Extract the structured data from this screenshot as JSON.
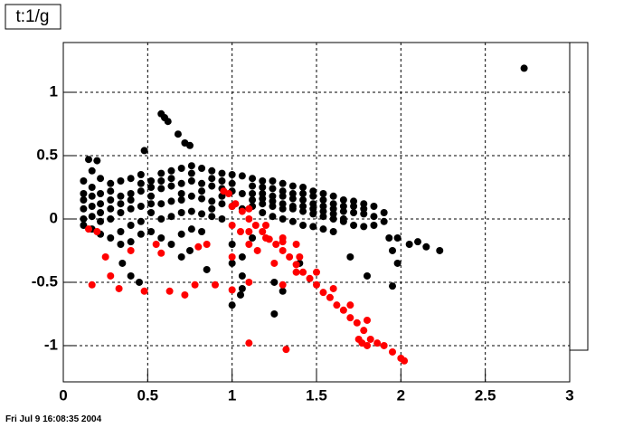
{
  "chart_data": {
    "type": "scatter",
    "title": "t:1/g",
    "footer": "Fri Jul  9 16:08:35 2004",
    "xlim": [
      0,
      3
    ],
    "ylim": [
      -1.286,
      1.393
    ],
    "xticks": [
      0,
      0.5,
      1,
      1.5,
      2,
      2.5,
      3
    ],
    "yticks": [
      -1,
      -0.5,
      0,
      0.5,
      1
    ],
    "grid": true,
    "series": [
      {
        "color": "#000000",
        "x": [
          0.12,
          0.12,
          0.12,
          0.12,
          0.12,
          0.12,
          0.17,
          0.17,
          0.17,
          0.17,
          0.17,
          0.17,
          0.22,
          0.22,
          0.22,
          0.22,
          0.22,
          0.22,
          0.28,
          0.28,
          0.28,
          0.28,
          0.28,
          0.28,
          0.34,
          0.34,
          0.34,
          0.34,
          0.34,
          0.34,
          0.4,
          0.4,
          0.4,
          0.4,
          0.4,
          0.4,
          0.46,
          0.46,
          0.46,
          0.46,
          0.46,
          0.46,
          0.52,
          0.52,
          0.52,
          0.52,
          0.52,
          0.52,
          0.58,
          0.58,
          0.58,
          0.58,
          0.58,
          0.58,
          0.64,
          0.64,
          0.64,
          0.64,
          0.64,
          0.64,
          0.7,
          0.7,
          0.7,
          0.7,
          0.7,
          0.7,
          0.76,
          0.76,
          0.76,
          0.76,
          0.76,
          0.76,
          0.82,
          0.82,
          0.82,
          0.82,
          0.82,
          0.82,
          0.88,
          0.88,
          0.88,
          0.88,
          0.88,
          0.88,
          0.94,
          0.94,
          0.94,
          0.94,
          0.94,
          0.94,
          1.0,
          1.0,
          1.0,
          1.0,
          1.0,
          1.0,
          1.06,
          1.06,
          1.06,
          1.06,
          1.06,
          1.06,
          1.12,
          1.12,
          1.12,
          1.12,
          1.12,
          1.12,
          1.18,
          1.18,
          1.18,
          1.18,
          1.18,
          1.18,
          1.24,
          1.24,
          1.24,
          1.24,
          1.24,
          1.24,
          1.3,
          1.3,
          1.3,
          1.3,
          1.3,
          1.3,
          1.36,
          1.36,
          1.36,
          1.36,
          1.36,
          1.36,
          1.42,
          1.42,
          1.42,
          1.42,
          1.42,
          1.42,
          1.48,
          1.48,
          1.48,
          1.48,
          1.48,
          1.48,
          1.54,
          1.54,
          1.54,
          1.54,
          1.54,
          1.54,
          1.6,
          1.6,
          1.6,
          1.6,
          1.6,
          1.6,
          1.66,
          1.66,
          1.66,
          1.66,
          1.66,
          1.72,
          1.72,
          1.72,
          1.72,
          1.78,
          1.78,
          1.78,
          1.78,
          1.84,
          1.84,
          1.84,
          1.9,
          1.9,
          2.73,
          0.58,
          0.6,
          0.62,
          0.68,
          0.72,
          0.75,
          0.48,
          0.15,
          0.2,
          1.93,
          1.98,
          2.05,
          2.1,
          2.15,
          2.23,
          1.95,
          1.98,
          1.8,
          1.95,
          1.25,
          1.3,
          1.25,
          1.4,
          1.7,
          1.0,
          1.05,
          0.45,
          0.4,
          0.35,
          0.7,
          0.75,
          0.85
        ],
        "values": [
          0.3,
          0.15,
          0.0,
          -0.05,
          0.2,
          0.08,
          0.38,
          0.25,
          0.1,
          -0.08,
          0.18,
          0.02,
          0.32,
          0.2,
          0.05,
          -0.12,
          0.12,
          -0.02,
          0.28,
          0.15,
          0.0,
          -0.15,
          0.22,
          0.08,
          0.3,
          0.18,
          0.05,
          -0.1,
          0.12,
          -0.2,
          0.32,
          0.2,
          0.08,
          -0.05,
          0.15,
          -0.18,
          0.35,
          0.22,
          0.1,
          -0.02,
          0.28,
          -0.12,
          0.3,
          0.18,
          0.05,
          -0.1,
          0.25,
          0.12,
          0.36,
          0.24,
          0.12,
          0.0,
          0.3,
          -0.15,
          0.38,
          0.26,
          0.14,
          0.02,
          0.32,
          -0.2,
          0.4,
          0.28,
          0.15,
          0.05,
          0.2,
          -0.12,
          0.42,
          0.3,
          0.18,
          0.06,
          0.36,
          -0.08,
          0.4,
          0.28,
          0.16,
          0.04,
          0.22,
          -0.1,
          0.38,
          0.26,
          0.14,
          0.02,
          0.32,
          0.08,
          0.36,
          0.24,
          0.12,
          0.0,
          0.3,
          0.18,
          0.35,
          0.22,
          0.1,
          -0.2,
          -0.35,
          0.28,
          0.34,
          0.2,
          0.08,
          -0.3,
          -0.45,
          -0.55,
          0.32,
          0.2,
          0.1,
          -0.15,
          0.26,
          0.15,
          0.3,
          0.2,
          0.12,
          0.05,
          0.25,
          0.16,
          0.3,
          0.18,
          0.1,
          0.02,
          0.24,
          0.14,
          0.28,
          0.18,
          0.08,
          0.0,
          0.22,
          0.12,
          0.26,
          0.16,
          0.08,
          -0.02,
          0.2,
          0.1,
          0.25,
          0.15,
          0.06,
          -0.05,
          0.2,
          0.1,
          0.22,
          0.12,
          0.04,
          -0.06,
          0.18,
          0.08,
          0.2,
          0.1,
          0.02,
          -0.08,
          0.15,
          0.06,
          0.18,
          0.08,
          0.0,
          -0.1,
          0.12,
          0.04,
          0.15,
          0.06,
          -0.02,
          0.1,
          0.0,
          0.14,
          0.05,
          -0.05,
          0.1,
          0.12,
          0.04,
          -0.06,
          0.08,
          0.1,
          0.02,
          -0.05,
          0.05,
          -0.02,
          1.19,
          0.83,
          0.8,
          0.77,
          0.67,
          0.6,
          0.58,
          0.54,
          0.47,
          0.46,
          -0.15,
          -0.15,
          -0.2,
          -0.18,
          -0.22,
          -0.25,
          -0.25,
          -0.35,
          -0.45,
          -0.53,
          -0.5,
          -0.57,
          -0.75,
          -0.35,
          -0.3,
          -0.68,
          -0.6,
          -0.5,
          -0.45,
          -0.35,
          -0.3,
          -0.25,
          -0.4
        ]
      },
      {
        "color": "#ff0000",
        "x": [
          0.95,
          0.98,
          1.02,
          1.06,
          1.1,
          1.14,
          1.18,
          1.22,
          1.26,
          1.3,
          1.34,
          1.38,
          1.42,
          1.46,
          1.5,
          1.54,
          1.58,
          1.62,
          1.66,
          1.7,
          1.74,
          1.78,
          1.82,
          1.86,
          1.9,
          1.95,
          2.0,
          2.02,
          1.1,
          1.2,
          1.3,
          1.4,
          1.5,
          1.6,
          1.7,
          1.8,
          1.77,
          1.8,
          1.75,
          1.0,
          1.0,
          1.05,
          1.1,
          0.15,
          0.17,
          0.2,
          0.25,
          0.28,
          0.33,
          0.4,
          0.48,
          0.55,
          0.58,
          0.63,
          0.72,
          0.78,
          0.8,
          0.85,
          0.9,
          1.0,
          1.1,
          1.3,
          1.38,
          1.1,
          1.32,
          1.1,
          1.15,
          1.25,
          1.3,
          1.38,
          1.2,
          1.0
        ],
        "values": [
          0.22,
          0.2,
          0.12,
          0.06,
          0.0,
          -0.05,
          -0.1,
          -0.16,
          -0.2,
          -0.25,
          -0.3,
          -0.36,
          -0.42,
          -0.47,
          -0.52,
          -0.58,
          -0.62,
          -0.68,
          -0.72,
          -0.78,
          -0.82,
          -0.88,
          -0.95,
          -0.98,
          -1.0,
          -1.05,
          -1.1,
          -1.12,
          0.08,
          -0.05,
          -0.15,
          -0.3,
          -0.42,
          -0.55,
          -0.68,
          -0.8,
          -0.98,
          -1.0,
          -0.95,
          0.1,
          -0.05,
          -0.1,
          -0.2,
          -0.08,
          -0.52,
          -0.1,
          -0.3,
          -0.45,
          -0.55,
          -0.25,
          -0.57,
          -0.2,
          -0.27,
          -0.57,
          -0.6,
          -0.52,
          -0.22,
          -0.2,
          -0.52,
          -0.56,
          -0.5,
          -0.52,
          -0.42,
          -0.98,
          -1.03,
          -0.1,
          -0.25,
          -0.35,
          -0.18,
          -0.2,
          -0.15,
          -0.3
        ]
      }
    ]
  }
}
